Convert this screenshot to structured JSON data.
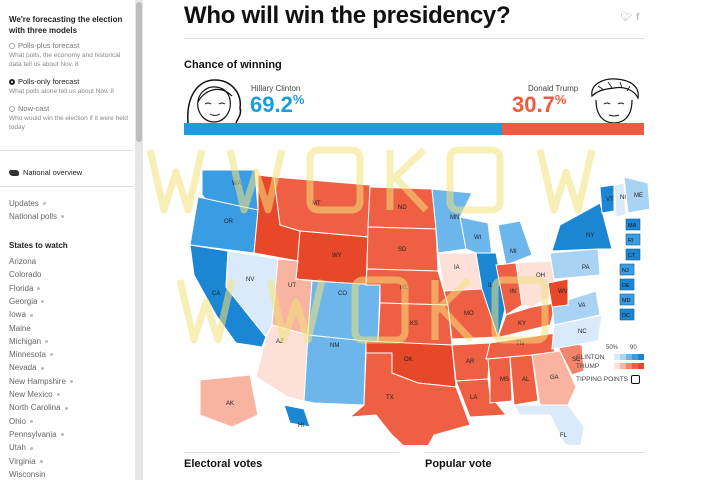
{
  "sidebar": {
    "header": "We're forecasting the election with three models",
    "models": [
      {
        "title": "Polls-plus forecast",
        "desc": "What polls, the economy and historical data tell us about Nov. 8",
        "selected": false
      },
      {
        "title": "Polls-only forecast",
        "desc": "What polls alone tell us about Nov. 8",
        "selected": true
      },
      {
        "title": "Now-cast",
        "desc": "Who would win the election if it were held today",
        "selected": false
      }
    ],
    "national_overview": "National overview",
    "links": [
      "Updates",
      "National polls"
    ],
    "states_title": "States to watch",
    "states": [
      "Arizona",
      "Colorado",
      "Florida",
      "Georgia",
      "Iowa",
      "Maine",
      "Michigan",
      "Minnesota",
      "Nevada",
      "New Hampshire",
      "New Mexico",
      "North Carolina",
      "Ohio",
      "Pennsylvania",
      "Utah",
      "Virginia",
      "Wisconsin"
    ],
    "state_dots": [
      false,
      false,
      true,
      true,
      true,
      false,
      true,
      true,
      true,
      true,
      true,
      true,
      true,
      true,
      true,
      true,
      false
    ]
  },
  "main": {
    "title": "Who will win the presidency?",
    "chance_label": "Chance of winning",
    "clinton": {
      "name": "Hillary Clinton",
      "pct": "69.2",
      "pct_value": 69.2
    },
    "trump": {
      "name": "Donald Trump",
      "pct": "30.7",
      "pct_value": 30.7
    },
    "pct_sign": "%",
    "sections": [
      "Electoral votes",
      "Popular vote"
    ]
  },
  "legend": {
    "clinton": "CLINTON",
    "trump": "TRUMP",
    "tipping": "TIPPING POINTS",
    "scale_low": "50%",
    "scale_high": "90"
  },
  "colors": {
    "clinton": "#1b9ce0",
    "trump": "#f05b3f",
    "clinton_shades": [
      "#dbeafa",
      "#a9d3f3",
      "#6cb6ec",
      "#3a9ce2",
      "#1b86d3"
    ],
    "trump_shades": [
      "#fde0d8",
      "#f9b3a1",
      "#f4846a",
      "#ef5f43",
      "#e8482a"
    ]
  },
  "map_states": [
    {
      "label": "WA",
      "lean": "c4"
    },
    {
      "label": "OR",
      "lean": "c4"
    },
    {
      "label": "CA",
      "lean": "c5"
    },
    {
      "label": "NV",
      "lean": "c1"
    },
    {
      "label": "ID",
      "lean": "t5"
    },
    {
      "label": "MT",
      "lean": "t4"
    },
    {
      "label": "WY",
      "lean": "t5"
    },
    {
      "label": "UT",
      "lean": "t2"
    },
    {
      "label": "AZ",
      "lean": "t1"
    },
    {
      "label": "CO",
      "lean": "c3"
    },
    {
      "label": "NM",
      "lean": "c3"
    },
    {
      "label": "ND",
      "lean": "t4"
    },
    {
      "label": "SD",
      "lean": "t4"
    },
    {
      "label": "NE",
      "lean": "t4"
    },
    {
      "label": "KS",
      "lean": "t4"
    },
    {
      "label": "OK",
      "lean": "t5"
    },
    {
      "label": "TX",
      "lean": "t4"
    },
    {
      "label": "MN",
      "lean": "c3"
    },
    {
      "label": "IA",
      "lean": "t1"
    },
    {
      "label": "MO",
      "lean": "t4"
    },
    {
      "label": "AR",
      "lean": "t4"
    },
    {
      "label": "LA",
      "lean": "t4"
    },
    {
      "label": "WI",
      "lean": "c3"
    },
    {
      "label": "IL",
      "lean": "c5"
    },
    {
      "label": "MI",
      "lean": "c3"
    },
    {
      "label": "IN",
      "lean": "t4"
    },
    {
      "label": "OH",
      "lean": "t1"
    },
    {
      "label": "KY",
      "lean": "t4"
    },
    {
      "label": "TN",
      "lean": "t4"
    },
    {
      "label": "MS",
      "lean": "t4"
    },
    {
      "label": "AL",
      "lean": "t4"
    },
    {
      "label": "GA",
      "lean": "t2"
    },
    {
      "label": "FL",
      "lean": "c1"
    },
    {
      "label": "SC",
      "lean": "t3"
    },
    {
      "label": "NC",
      "lean": "c1"
    },
    {
      "label": "VA",
      "lean": "c2"
    },
    {
      "label": "WV",
      "lean": "t5"
    },
    {
      "label": "PA",
      "lean": "c2"
    },
    {
      "label": "NY",
      "lean": "c5"
    },
    {
      "label": "VT",
      "lean": "c5"
    },
    {
      "label": "NH",
      "lean": "c1"
    },
    {
      "label": "ME",
      "lean": "c2"
    },
    {
      "label": "AK",
      "lean": "t2"
    },
    {
      "label": "HI",
      "lean": "c5"
    }
  ],
  "map_boxes": [
    "MA",
    "RI",
    "CT",
    "NJ",
    "DE",
    "MD",
    "DC"
  ],
  "watermark": "WWOKO"
}
